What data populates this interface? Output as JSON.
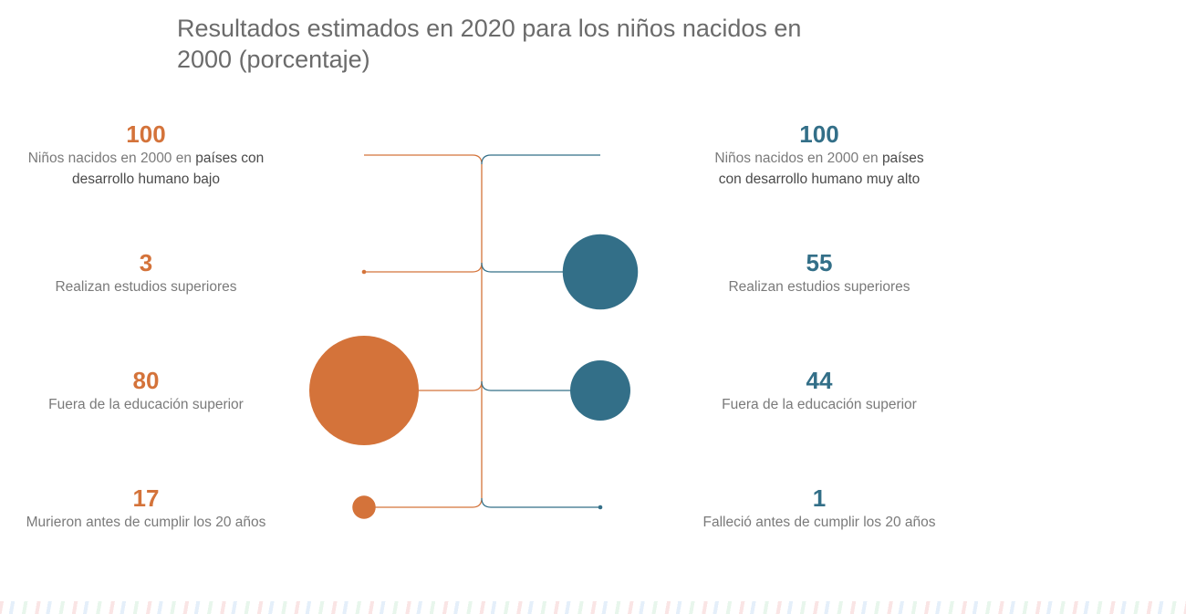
{
  "title": "Resultados estimados en 2020 para los niños nacidos en 2000 (porcentaje)",
  "colors": {
    "low": "#d4733a",
    "high": "#336f88"
  },
  "chart_data": {
    "type": "bubble-tree",
    "title": "Resultados estimados en 2020 para los niños nacidos en 2000 (porcentaje)",
    "groups": [
      {
        "side": "left",
        "color": "#d4733a",
        "rows": [
          {
            "value": 100,
            "label": "Niños nacidos en 2000 en ",
            "label_bold": "países con desarrollo humano bajo"
          },
          {
            "value": 3,
            "label": "Realizan estudios superiores",
            "label_bold": ""
          },
          {
            "value": 80,
            "label": "Fuera de la educación superior",
            "label_bold": ""
          },
          {
            "value": 17,
            "label": "Murieron antes de cumplir los 20 años",
            "label_bold": ""
          }
        ]
      },
      {
        "side": "right",
        "color": "#336f88",
        "rows": [
          {
            "value": 100,
            "label": "Niños nacidos en 2000 en ",
            "label_bold": "países con desarrollo humano muy alto"
          },
          {
            "value": 55,
            "label": "Realizan estudios superiores",
            "label_bold": ""
          },
          {
            "value": 44,
            "label": "Fuera de la educación superior",
            "label_bold": ""
          },
          {
            "value": 1,
            "label": "Falleció antes de cumplir los 20 años",
            "label_bold": ""
          }
        ]
      }
    ]
  }
}
